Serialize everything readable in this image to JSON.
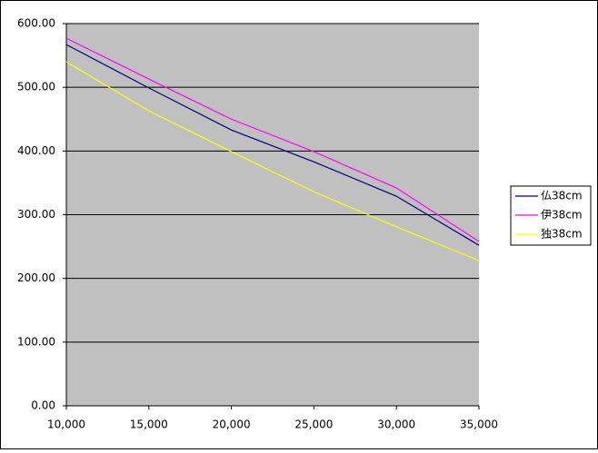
{
  "chart_data": {
    "type": "line",
    "x": [
      10000,
      15000,
      20000,
      25000,
      30000,
      35000
    ],
    "series": [
      {
        "name": "仏38cm",
        "color": "#000080",
        "values": [
          567,
          499,
          433,
          383,
          329,
          252
        ]
      },
      {
        "name": "伊38cm",
        "color": "#ff00ff",
        "values": [
          577,
          513,
          450,
          399,
          342,
          258
        ]
      },
      {
        "name": "独38cm",
        "color": "#ffff00",
        "values": [
          540,
          463,
          399,
          336,
          281,
          228
        ]
      }
    ],
    "xlim": [
      10000,
      35000
    ],
    "xticks": [
      {
        "value": 10000,
        "label": "10,000"
      },
      {
        "value": 15000,
        "label": "15,000"
      },
      {
        "value": 20000,
        "label": "20,000"
      },
      {
        "value": 25000,
        "label": "25,000"
      },
      {
        "value": 30000,
        "label": "30,000"
      },
      {
        "value": 35000,
        "label": "35,000"
      }
    ],
    "ylim": [
      0,
      600
    ],
    "yticks": [
      {
        "value": 0,
        "label": "0.00"
      },
      {
        "value": 100,
        "label": "100.00"
      },
      {
        "value": 200,
        "label": "200.00"
      },
      {
        "value": 300,
        "label": "300.00"
      },
      {
        "value": 400,
        "label": "400.00"
      },
      {
        "value": 500,
        "label": "500.00"
      },
      {
        "value": 600,
        "label": "600.00"
      }
    ],
    "grid": true,
    "legend": "right",
    "plot_background": "#c0c0c0"
  }
}
